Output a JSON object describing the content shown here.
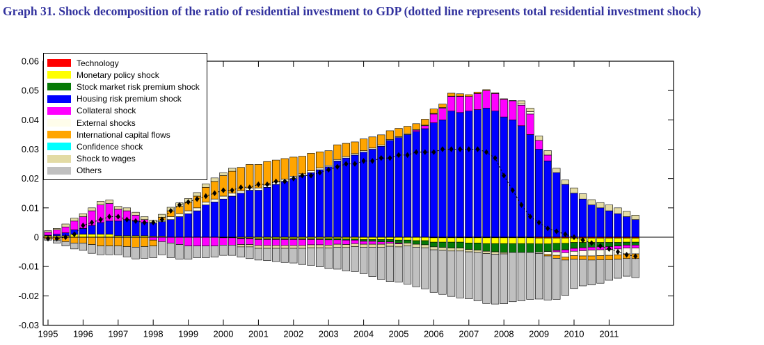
{
  "title": "Graph 31. Shock decomposition of the ratio of residential investment to GDP (dotted line represents total residential investment shock)",
  "title_color": "#32329e",
  "chart_data": {
    "type": "bar",
    "subtype": "stacked-bar-with-dotted-line",
    "title": "Graph 31. Shock decomposition of the ratio of residential investment to GDP",
    "line_note": "dotted line represents total residential investment shock",
    "xlabel": "",
    "ylabel": "",
    "ylim": [
      -0.03,
      0.06
    ],
    "ytick_labels": [
      "0.06",
      "0.05",
      "0.04",
      "0.03",
      "0.02",
      "0.01",
      "0",
      "-0.01",
      "-0.02",
      "-0.03"
    ],
    "ytick_values": [
      0.06,
      0.05,
      0.04,
      0.03,
      0.02,
      0.01,
      0,
      -0.01,
      -0.02,
      -0.03
    ],
    "xtick_years": [
      "1995",
      "1996",
      "1997",
      "1998",
      "1999",
      "2000",
      "2001",
      "2002",
      "2003",
      "2004",
      "2005",
      "2006",
      "2007",
      "2008",
      "2009",
      "2010",
      "2011"
    ],
    "x_frequency": "quarterly",
    "x_start": "1995Q1",
    "x_end": "2011Q4",
    "legend_position": "top-left",
    "grid": false,
    "series": [
      {
        "name": "technology",
        "label": "Technology",
        "color": "#ff0000",
        "values": [
          0,
          0,
          0,
          0,
          0,
          0,
          0,
          0,
          0,
          0,
          0,
          0,
          0,
          0,
          0,
          0,
          0,
          0,
          0,
          0,
          0,
          0,
          0,
          0,
          0,
          0,
          0,
          0,
          0,
          0,
          0,
          0,
          0,
          0,
          0,
          0,
          0,
          0,
          0,
          0,
          0,
          0,
          0,
          0,
          -0.0002,
          -0.0002,
          -0.0002,
          -0.0002,
          -0.0002,
          -0.0002,
          -0.0002,
          -0.0002,
          -0.0002,
          -0.0002,
          -0.0002,
          -0.0002,
          -0.0003,
          -0.0003,
          -0.0003,
          -0.0003,
          -0.0003,
          -0.0003,
          -0.0003,
          -0.0003,
          -0.0003,
          -0.0003,
          -0.0003,
          -0.0003
        ]
      },
      {
        "name": "monetary_policy",
        "label": "Monetary policy shock",
        "color": "#ffff00",
        "values": [
          0.0005,
          0.0005,
          0.0005,
          0.001,
          0.001,
          0.001,
          0.001,
          0.001,
          0.0005,
          0.0005,
          0.0005,
          0.0005,
          0.0003,
          0.0003,
          0,
          0,
          0,
          0,
          0,
          0,
          0,
          0,
          -0.0003,
          -0.0003,
          -0.0005,
          -0.0005,
          -0.0005,
          -0.0005,
          -0.0005,
          -0.0005,
          -0.0005,
          -0.0005,
          -0.0005,
          -0.0005,
          -0.0006,
          -0.0006,
          -0.0008,
          -0.0008,
          -0.0008,
          -0.0008,
          -0.001,
          -0.001,
          -0.0012,
          -0.0012,
          -0.0015,
          -0.0015,
          -0.0015,
          -0.0015,
          -0.0018,
          -0.0018,
          -0.002,
          -0.002,
          -0.002,
          -0.002,
          -0.002,
          -0.002,
          -0.002,
          -0.002,
          -0.0018,
          -0.0018,
          -0.0015,
          -0.0015,
          -0.0015,
          -0.0015,
          -0.0015,
          -0.0015,
          -0.0014,
          -0.0014
        ]
      },
      {
        "name": "stock_market_risk_premium",
        "label": "Stock market risk premium shock",
        "color": "#067a06",
        "values": [
          0,
          0,
          0,
          0,
          0,
          0,
          0,
          0,
          0,
          0,
          0,
          0,
          0,
          0,
          0,
          0,
          0,
          0,
          0,
          0,
          -0.0002,
          -0.0002,
          -0.0002,
          -0.0002,
          -0.0003,
          -0.0003,
          -0.0003,
          -0.0003,
          -0.0003,
          -0.0003,
          -0.0003,
          -0.0003,
          -0.0004,
          -0.0004,
          -0.0004,
          -0.0004,
          -0.0006,
          -0.0006,
          -0.0008,
          -0.0008,
          -0.001,
          -0.001,
          -0.0012,
          -0.0014,
          -0.0016,
          -0.0018,
          -0.002,
          -0.002,
          -0.0022,
          -0.0024,
          -0.0026,
          -0.0028,
          -0.003,
          -0.003,
          -0.003,
          -0.003,
          -0.0028,
          -0.0026,
          -0.0024,
          -0.0022,
          -0.002,
          -0.0018,
          -0.0016,
          -0.0015,
          -0.0014,
          -0.0012,
          -0.001,
          -0.001
        ]
      },
      {
        "name": "housing_risk_premium",
        "label": "Housing risk premium shock",
        "color": "#0000ff",
        "values": [
          0.0002,
          0.0005,
          0.001,
          0.0015,
          0.002,
          0.003,
          0.004,
          0.0045,
          0.005,
          0.0055,
          0.005,
          0.0045,
          0.0045,
          0.005,
          0.006,
          0.007,
          0.008,
          0.009,
          0.011,
          0.012,
          0.013,
          0.014,
          0.015,
          0.016,
          0.016,
          0.017,
          0.018,
          0.019,
          0.02,
          0.021,
          0.022,
          0.023,
          0.024,
          0.026,
          0.027,
          0.028,
          0.029,
          0.03,
          0.031,
          0.033,
          0.034,
          0.035,
          0.036,
          0.037,
          0.039,
          0.04,
          0.043,
          0.0425,
          0.043,
          0.0435,
          0.044,
          0.043,
          0.041,
          0.04,
          0.038,
          0.035,
          0.03,
          0.026,
          0.022,
          0.018,
          0.015,
          0.013,
          0.011,
          0.01,
          0.009,
          0.008,
          0.007,
          0.006
        ]
      },
      {
        "name": "collateral",
        "label": "Collateral shock",
        "color": "#ff00ff",
        "values": [
          0.001,
          0.0015,
          0.002,
          0.003,
          0.004,
          0.005,
          0.006,
          0.006,
          0.004,
          0.003,
          0.002,
          0.001,
          -0.001,
          -0.0015,
          -0.002,
          -0.0025,
          -0.003,
          -0.003,
          -0.003,
          -0.003,
          -0.0025,
          -0.0025,
          -0.002,
          -0.002,
          -0.002,
          -0.002,
          -0.002,
          -0.002,
          -0.002,
          -0.002,
          -0.0018,
          -0.0018,
          -0.0018,
          -0.0015,
          -0.0015,
          -0.0012,
          -0.001,
          -0.001,
          -0.0008,
          -0.0005,
          -0.0003,
          0,
          0.0005,
          0.001,
          0.003,
          0.004,
          0.005,
          0.0055,
          0.005,
          0.0055,
          0.006,
          0.006,
          0.006,
          0.0065,
          0.007,
          0.007,
          0.003,
          0.002,
          -0.0005,
          -0.001,
          -0.001,
          -0.001,
          -0.001,
          -0.001,
          -0.001,
          -0.001,
          -0.001,
          -0.001
        ]
      },
      {
        "name": "external",
        "label": "External shocks",
        "color": "#fffdeb",
        "values": [
          0,
          0,
          0,
          0,
          0,
          0,
          0,
          0,
          0,
          0,
          0,
          0,
          0,
          0.0005,
          0.001,
          0.001,
          0.001,
          0.001,
          0.001,
          0.001,
          0.001,
          0.001,
          0.0008,
          0.0008,
          0.0008,
          0.0008,
          0.0008,
          0.0008,
          0.0008,
          0.0006,
          0.0006,
          0.0006,
          0.0005,
          0.0005,
          0.0005,
          0.0005,
          0.0005,
          0.0004,
          0.0004,
          0.0003,
          0.0003,
          0.0003,
          0.0002,
          0.0002,
          0.0002,
          0.0002,
          0.0001,
          0.0001,
          0,
          0,
          0,
          0,
          0,
          0,
          0.0005,
          0.0008,
          -0.0005,
          -0.001,
          -0.0012,
          -0.0015,
          -0.0015,
          -0.0018,
          -0.002,
          -0.002,
          -0.002,
          -0.002,
          -0.002,
          -0.002
        ]
      },
      {
        "name": "international_capital_flows",
        "label": "International capital flows",
        "color": "#ffa500",
        "values": [
          -0.0005,
          -0.001,
          -0.0015,
          -0.002,
          -0.002,
          -0.0025,
          -0.003,
          -0.003,
          -0.003,
          -0.0032,
          -0.0034,
          -0.0032,
          -0.002,
          0.001,
          0.002,
          0.0025,
          0.003,
          0.004,
          0.005,
          0.006,
          0.007,
          0.0075,
          0.008,
          0.008,
          0.008,
          0.008,
          0.0075,
          0.007,
          0.0065,
          0.006,
          0.006,
          0.0055,
          0.005,
          0.005,
          0.0045,
          0.004,
          0.004,
          0.0038,
          0.0035,
          0.003,
          0.0028,
          0.0025,
          0.002,
          0.002,
          0.0015,
          0.0012,
          0.001,
          0.0008,
          0.0006,
          0.0005,
          0.0003,
          0.0002,
          0.0002,
          0.0001,
          0,
          0,
          0,
          -0.0005,
          -0.001,
          -0.001,
          -0.0012,
          -0.0012,
          -0.0014,
          -0.0014,
          -0.0015,
          -0.0015,
          -0.0016,
          -0.0016
        ]
      },
      {
        "name": "confidence",
        "label": "Confidence shock",
        "color": "#00ffff",
        "values": [
          0,
          0,
          0,
          0,
          0,
          0,
          0,
          0,
          0,
          0,
          0,
          0,
          0,
          0,
          0,
          0,
          0,
          0,
          0,
          0,
          0,
          0,
          0,
          0,
          0,
          0,
          0,
          0,
          0,
          0,
          0,
          0,
          0,
          0,
          0,
          0,
          0,
          0,
          0,
          0,
          0,
          0,
          0,
          0,
          0,
          0,
          0,
          0,
          0,
          0,
          0,
          0,
          0,
          0,
          0,
          0,
          0,
          0,
          0,
          0,
          0,
          0,
          0,
          0,
          0,
          0,
          0,
          0
        ]
      },
      {
        "name": "wages",
        "label": "Shock to wages",
        "color": "#e3dba4",
        "values": [
          0.0005,
          0.0005,
          0.001,
          0.001,
          0.001,
          0.001,
          0.0012,
          0.0012,
          0.001,
          0.001,
          0.001,
          0.001,
          0.001,
          0.001,
          0.0012,
          0.0012,
          0.0012,
          0.0012,
          0.0012,
          0.0012,
          0.001,
          0.001,
          -0.0008,
          -0.0008,
          -0.001,
          -0.001,
          -0.001,
          -0.001,
          -0.001,
          -0.001,
          -0.001,
          -0.001,
          -0.001,
          -0.001,
          -0.001,
          -0.001,
          -0.001,
          -0.001,
          -0.001,
          -0.001,
          -0.001,
          -0.001,
          -0.001,
          -0.001,
          -0.001,
          -0.001,
          -0.001,
          -0.001,
          -0.0008,
          -0.0008,
          -0.0008,
          -0.0008,
          -0.0005,
          0,
          0.001,
          0.0012,
          0.0015,
          0.0015,
          0.0015,
          0.0015,
          0.0018,
          0.0018,
          0.0018,
          0.0018,
          0.002,
          0.002,
          0.0018,
          0.0015
        ]
      },
      {
        "name": "others",
        "label": "Others",
        "color": "#c0c0c0",
        "values": [
          -0.0005,
          -0.001,
          -0.0015,
          -0.002,
          -0.0025,
          -0.003,
          -0.003,
          -0.003,
          -0.003,
          -0.0035,
          -0.004,
          -0.004,
          -0.004,
          -0.0045,
          -0.005,
          -0.005,
          -0.0045,
          -0.004,
          -0.004,
          -0.0038,
          -0.0035,
          -0.0035,
          -0.0035,
          -0.004,
          -0.004,
          -0.0042,
          -0.0045,
          -0.0048,
          -0.005,
          -0.0055,
          -0.006,
          -0.0065,
          -0.007,
          -0.0075,
          -0.008,
          -0.0085,
          -0.009,
          -0.01,
          -0.011,
          -0.012,
          -0.012,
          -0.013,
          -0.0135,
          -0.014,
          -0.0145,
          -0.015,
          -0.0155,
          -0.016,
          -0.016,
          -0.0165,
          -0.017,
          -0.017,
          -0.017,
          -0.0168,
          -0.0165,
          -0.016,
          -0.0155,
          -0.015,
          -0.014,
          -0.012,
          -0.01,
          -0.009,
          -0.0085,
          -0.008,
          -0.007,
          -0.0065,
          -0.006,
          -0.0065
        ]
      }
    ],
    "line": {
      "name": "total_residential_investment_shock",
      "label": "Total residential investment shock",
      "color": "#000000",
      "style": "dotted-with-diamond-markers",
      "values": [
        -0.0005,
        -0.0005,
        0,
        0.001,
        0.004,
        0.005,
        0.006,
        0.007,
        0.007,
        0.006,
        0.0055,
        0.005,
        0.005,
        0.006,
        0.009,
        0.011,
        0.012,
        0.013,
        0.014,
        0.015,
        0.016,
        0.016,
        0.017,
        0.017,
        0.018,
        0.018,
        0.019,
        0.019,
        0.02,
        0.021,
        0.021,
        0.022,
        0.023,
        0.024,
        0.025,
        0.025,
        0.026,
        0.026,
        0.027,
        0.027,
        0.028,
        0.028,
        0.029,
        0.029,
        0.029,
        0.03,
        0.03,
        0.03,
        0.03,
        0.03,
        0.029,
        0.027,
        0.021,
        0.016,
        0.011,
        0.007,
        0.005,
        0.003,
        0.002,
        0.001,
        0,
        -0.001,
        -0.002,
        -0.003,
        -0.004,
        -0.005,
        -0.006,
        -0.0065
      ]
    }
  }
}
